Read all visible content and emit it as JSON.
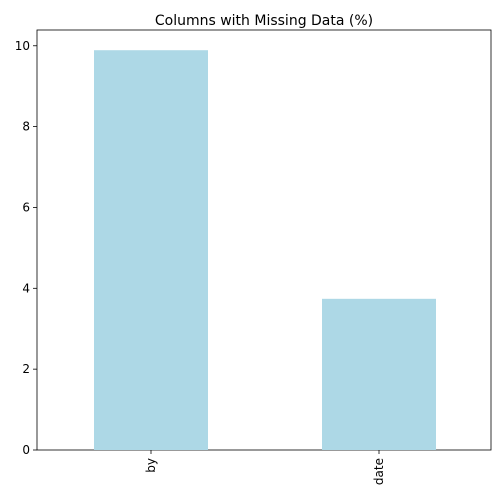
{
  "chart_data": {
    "type": "bar",
    "title": "Columns with Missing Data (%)",
    "xlabel": "",
    "ylabel": "",
    "categories": [
      "by",
      "date"
    ],
    "values": [
      9.89,
      3.74
    ],
    "ylim": [
      0,
      10.39
    ],
    "yticks": [
      0,
      2,
      4,
      6,
      8,
      10
    ],
    "bar_color": "#add8e6",
    "grid": false,
    "legend": "none"
  }
}
